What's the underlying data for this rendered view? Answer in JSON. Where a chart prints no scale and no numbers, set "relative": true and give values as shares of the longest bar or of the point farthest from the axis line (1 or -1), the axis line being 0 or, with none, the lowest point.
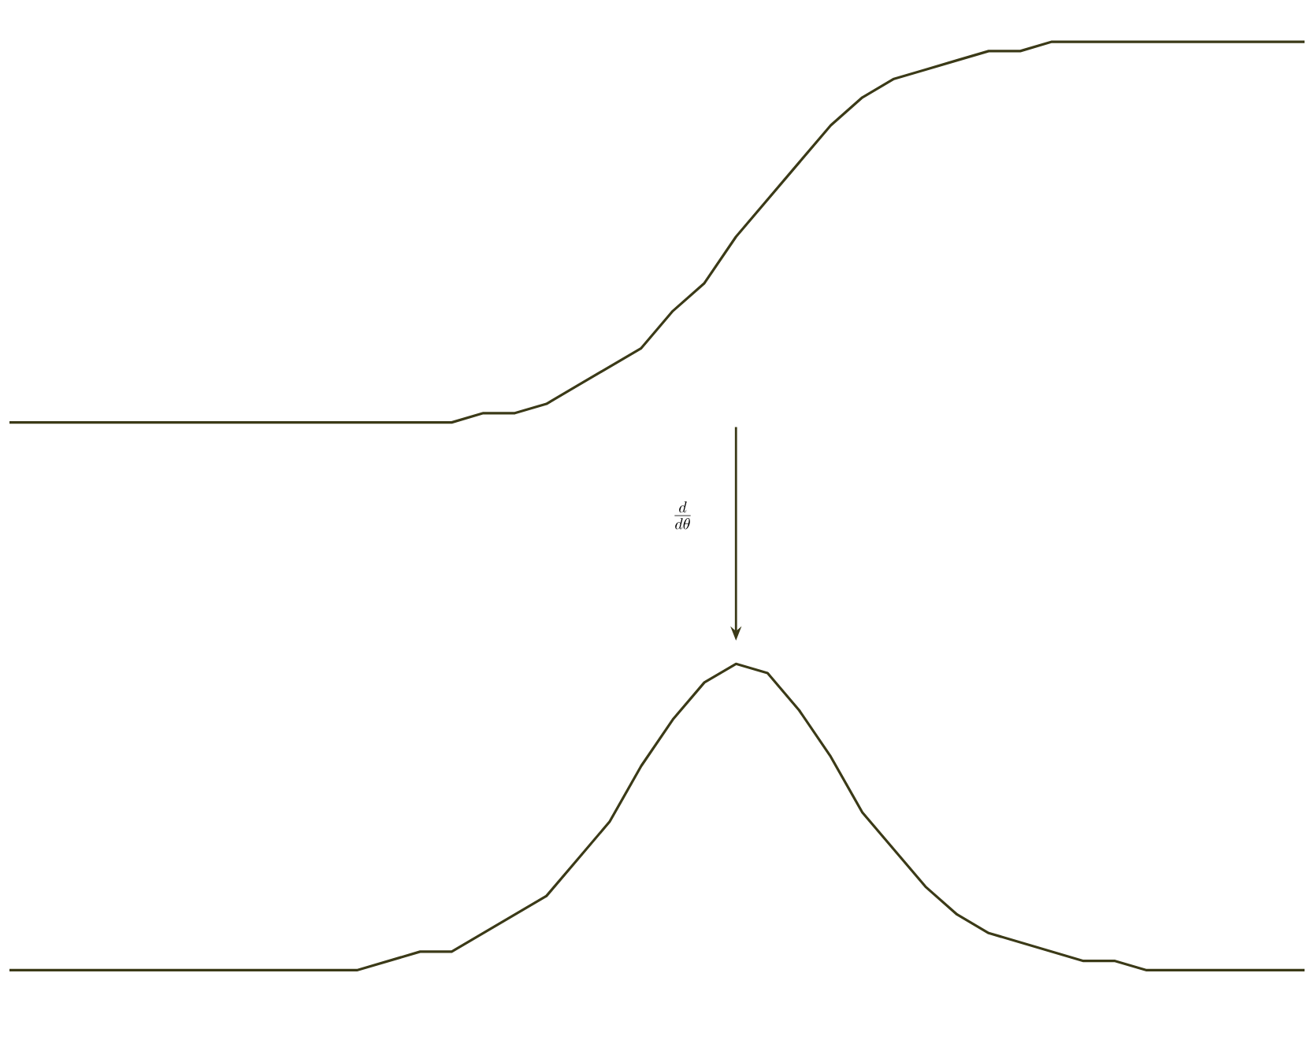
{
  "chart_data": {
    "type": "line",
    "relative": true,
    "categories": [
      null,
      null,
      null,
      null,
      null,
      null,
      null,
      null,
      null,
      null,
      null,
      null,
      null,
      null,
      null,
      null,
      null,
      null,
      null,
      null,
      null,
      null,
      null,
      null,
      null,
      null,
      null,
      null,
      null,
      null,
      null,
      null,
      null,
      null,
      null,
      null,
      null,
      null,
      null,
      null,
      null,
      null
    ],
    "series": [
      {
        "color": "#3b3a17",
        "values": [
          0.59,
          0.59,
          0.59,
          0.59,
          0.59,
          0.59,
          0.59,
          0.59,
          0.59,
          0.59,
          0.59,
          0.59,
          0.59,
          0.59,
          0.59,
          0.6,
          0.6,
          0.61,
          0.63,
          0.65,
          0.67,
          0.71,
          0.74,
          0.79,
          0.83,
          0.87,
          0.91,
          0.94,
          0.96,
          0.97,
          0.98,
          0.99,
          0.99,
          1.0,
          1.0,
          1.0,
          1.0,
          1.0,
          1.0,
          1.0,
          1.0,
          1.0
        ]
      },
      {
        "color": "#3b3a17",
        "values": [
          0,
          0,
          0,
          0,
          0,
          0,
          0,
          0,
          0,
          0,
          0,
          0,
          0.01,
          0.02,
          0.02,
          0.04,
          0.06,
          0.08,
          0.12,
          0.16,
          0.22,
          0.27,
          0.31,
          0.33,
          0.32,
          0.28,
          0.23,
          0.17,
          0.13,
          0.09,
          0.06,
          0.04,
          0.03,
          0.02,
          0.01,
          0.01,
          0,
          0,
          0,
          0,
          0,
          0
        ]
      }
    ],
    "annotations": [
      "\\frac{d}{d\\theta}"
    ]
  }
}
